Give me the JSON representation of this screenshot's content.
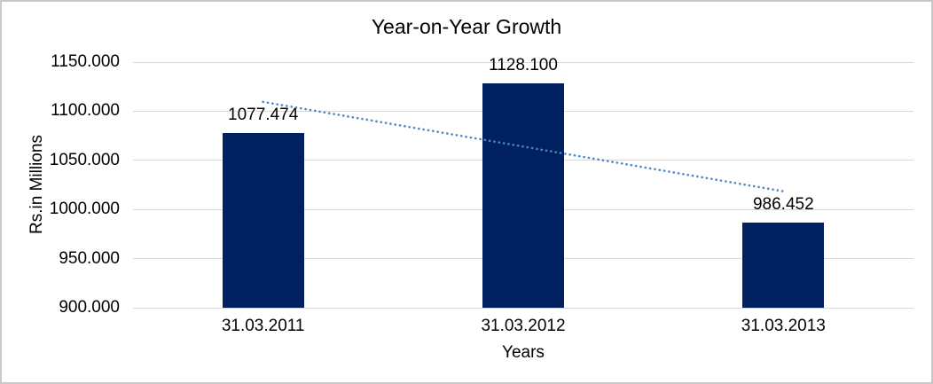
{
  "chart_data": {
    "type": "bar",
    "title": "Year-on-Year Growth",
    "xlabel": "Years",
    "ylabel": "Rs.in Millions",
    "categories": [
      "31.03.2011",
      "31.03.2012",
      "31.03.2013"
    ],
    "values": [
      1077.474,
      1128.1,
      986.452
    ],
    "labels": [
      "1077.474",
      "1128.100",
      "986.452"
    ],
    "y_ticks": [
      "1150.000",
      "1100.000",
      "1050.000",
      "1000.000",
      "950.000",
      "900.000"
    ],
    "ylim": [
      900,
      1150
    ],
    "grid": "horizontal",
    "legend": "none",
    "bar_color": "#002060",
    "gridline_color": "#d9d9d9",
    "frame_border_color": "#c9c9c9",
    "trendline": {
      "type": "linear",
      "style": "dotted",
      "color": "#4a86c8",
      "start_value": 1109.5,
      "end_value": 1018.5
    }
  }
}
